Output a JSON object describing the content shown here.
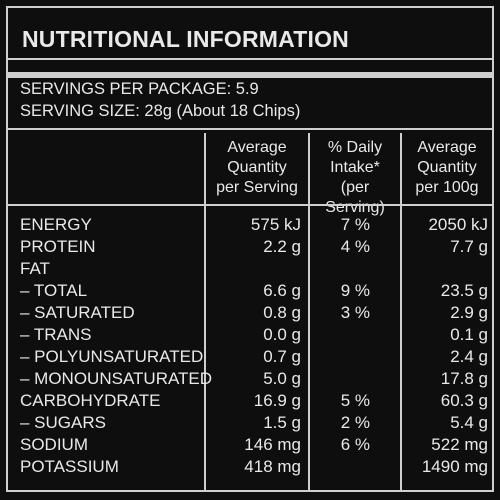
{
  "title": "NUTRITIONAL INFORMATION",
  "servings_per_package": "SERVINGS PER PACKAGE: 5.9",
  "serving_size": "SERVING SIZE: 28g (About 18 Chips)",
  "headers": {
    "per_serving": [
      "Average",
      "Quantity",
      "per Serving"
    ],
    "daily_intake": [
      "% Daily",
      "Intake*",
      "(per Serving)"
    ],
    "per_100g": [
      "Average",
      "Quantity",
      "per 100g"
    ]
  },
  "rows": [
    {
      "label": "ENERGY",
      "per_serving": "575 kJ",
      "daily_intake": "7 %",
      "per_100g": "2050 kJ"
    },
    {
      "label": "PROTEIN",
      "per_serving": "2.2 g",
      "daily_intake": "4 %",
      "per_100g": "7.7 g"
    },
    {
      "label": "FAT",
      "per_serving": "",
      "daily_intake": "",
      "per_100g": ""
    },
    {
      "label": "– TOTAL",
      "per_serving": "6.6 g",
      "daily_intake": "9 %",
      "per_100g": "23.5 g"
    },
    {
      "label": "– SATURATED",
      "per_serving": "0.8 g",
      "daily_intake": "3 %",
      "per_100g": "2.9 g"
    },
    {
      "label": "– TRANS",
      "per_serving": "0.0 g",
      "daily_intake": "",
      "per_100g": "0.1 g"
    },
    {
      "label": "– POLYUNSATURATED",
      "per_serving": "0.7 g",
      "daily_intake": "",
      "per_100g": "2.4 g"
    },
    {
      "label": "– MONOUNSATURATED",
      "per_serving": "5.0 g",
      "daily_intake": "",
      "per_100g": "17.8 g"
    },
    {
      "label": "CARBOHYDRATE",
      "per_serving": "16.9 g",
      "daily_intake": "5 %",
      "per_100g": "60.3 g"
    },
    {
      "label": "– SUGARS",
      "per_serving": "1.5 g",
      "daily_intake": "2 %",
      "per_100g": "5.4 g"
    },
    {
      "label": "SODIUM",
      "per_serving": "146 mg",
      "daily_intake": "6 %",
      "per_100g": "522 mg"
    },
    {
      "label": "POTASSIUM",
      "per_serving": "418 mg",
      "daily_intake": "",
      "per_100g": "1490 mg"
    }
  ]
}
